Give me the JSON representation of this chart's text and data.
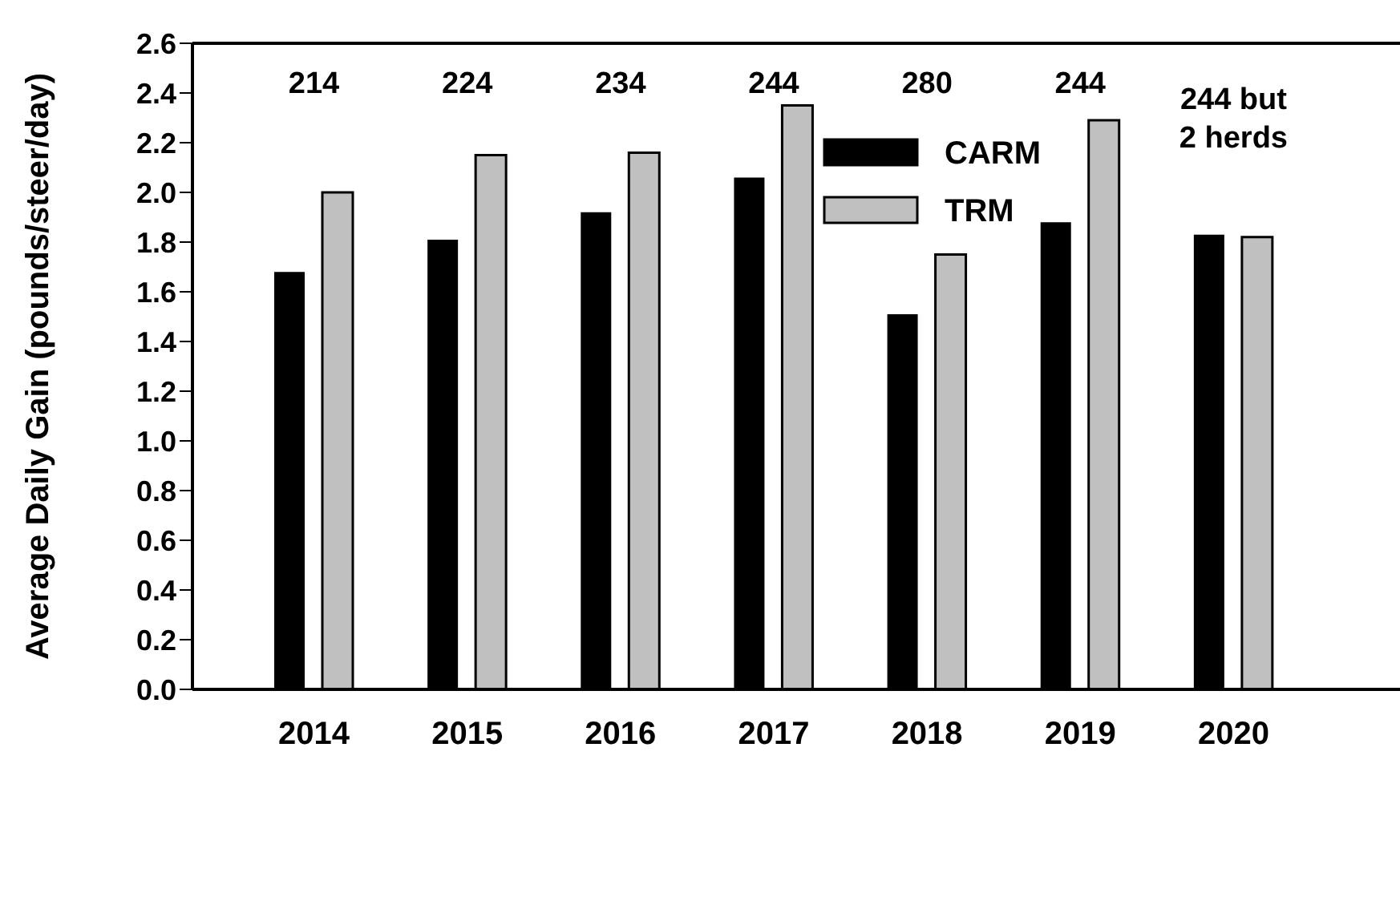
{
  "chart_data": {
    "type": "bar",
    "ylabel": "Average Daily Gain (pounds/steer/day)",
    "categories": [
      "2014",
      "2015",
      "2016",
      "2017",
      "2018",
      "2019",
      "2020"
    ],
    "series": [
      {
        "name": "CARM",
        "color": "#000000",
        "values": [
          1.68,
          1.81,
          1.92,
          2.06,
          1.51,
          1.88,
          1.83
        ]
      },
      {
        "name": "TRM",
        "color": "#c0c0c0",
        "values": [
          2.0,
          2.15,
          2.16,
          2.35,
          1.75,
          2.29,
          1.82
        ]
      }
    ],
    "ylim": [
      0,
      2.6
    ],
    "yticks": [
      {
        "value": 0,
        "label": "0.0"
      },
      0.2,
      0.4,
      0.6,
      0.8,
      {
        "value": 1,
        "label": "1.0"
      },
      1.2,
      1.4,
      1.6,
      1.8,
      {
        "value": 2,
        "label": "2.0"
      },
      2.2,
      2.4,
      2.6
    ],
    "annotations": [
      "214",
      "224",
      "234",
      "244",
      "280",
      "244",
      "244 but\n2 herds"
    ],
    "grid": false,
    "legend": "top right"
  }
}
